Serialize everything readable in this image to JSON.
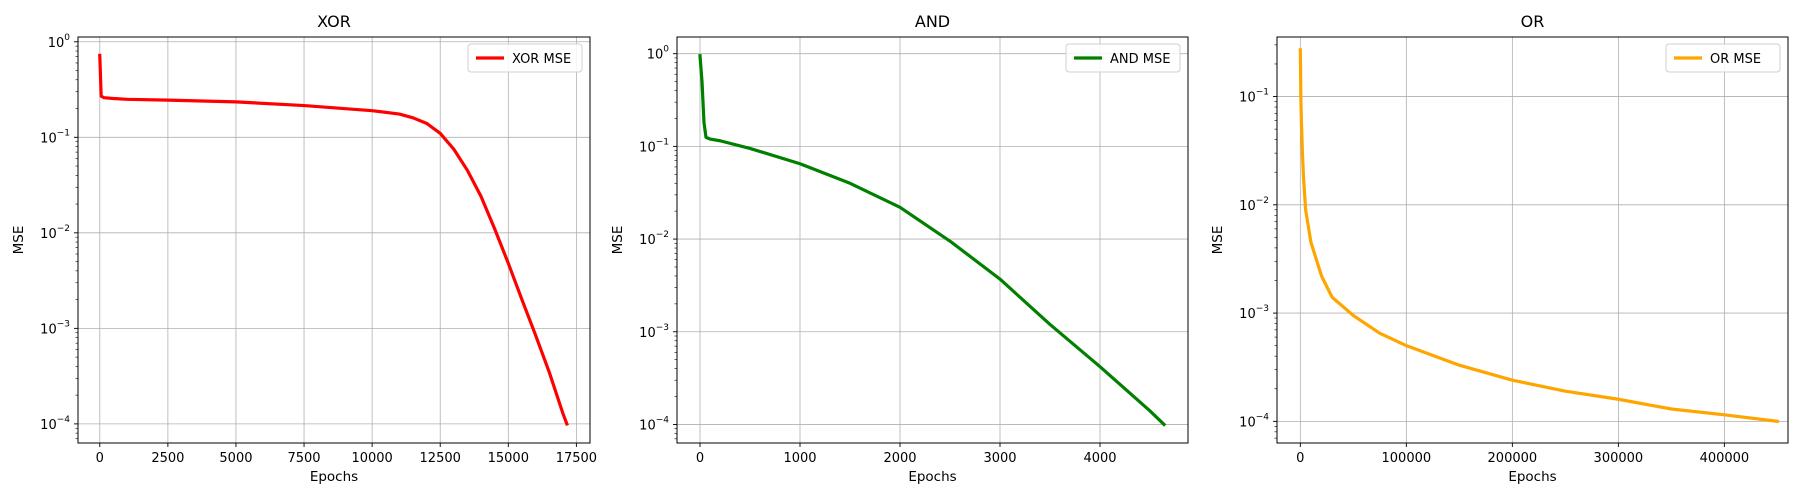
{
  "chart_data": [
    {
      "type": "line",
      "title": "XOR",
      "xlabel": "Epochs",
      "ylabel": "MSE",
      "yscale": "log",
      "xlim": [
        -800,
        18000
      ],
      "ylim_exp": [
        -4.2,
        0.05
      ],
      "xticks": [
        0,
        2500,
        5000,
        7500,
        10000,
        12500,
        15000,
        17500
      ],
      "xtick_labels": [
        "0",
        "2500",
        "5000",
        "7500",
        "10000",
        "12500",
        "15000",
        "17500"
      ],
      "yticks_exp": [
        -4,
        -3,
        -2,
        -1,
        0
      ],
      "grid": true,
      "legend_position": "top-right",
      "series": [
        {
          "name": "XOR MSE",
          "color": "#ff0000",
          "x": [
            0,
            50,
            150,
            500,
            1000,
            2500,
            5000,
            7500,
            10000,
            11000,
            11500,
            12000,
            12500,
            13000,
            13500,
            14000,
            14500,
            15000,
            15500,
            16000,
            16500,
            17000,
            17150
          ],
          "y": [
            0.72,
            0.27,
            0.26,
            0.255,
            0.25,
            0.245,
            0.235,
            0.215,
            0.19,
            0.175,
            0.16,
            0.14,
            0.11,
            0.075,
            0.045,
            0.024,
            0.011,
            0.0048,
            0.002,
            0.00085,
            0.00035,
            0.00013,
            0.0001
          ]
        }
      ]
    },
    {
      "type": "line",
      "title": "AND",
      "xlabel": "Epochs",
      "ylabel": "MSE",
      "yscale": "log",
      "xlim": [
        -230,
        4880
      ],
      "ylim_exp": [
        -4.2,
        0.18
      ],
      "xticks": [
        0,
        1000,
        2000,
        3000,
        4000
      ],
      "xtick_labels": [
        "0",
        "1000",
        "2000",
        "3000",
        "4000"
      ],
      "yticks_exp": [
        -4,
        -3,
        -2,
        -1,
        0
      ],
      "grid": true,
      "legend_position": "top-right",
      "series": [
        {
          "name": "AND MSE",
          "color": "#008000",
          "x": [
            0,
            20,
            40,
            60,
            100,
            200,
            500,
            1000,
            1500,
            2000,
            2500,
            3000,
            3500,
            4000,
            4500,
            4640
          ],
          "y": [
            0.95,
            0.5,
            0.18,
            0.125,
            0.12,
            0.115,
            0.095,
            0.065,
            0.04,
            0.022,
            0.0095,
            0.0037,
            0.0012,
            0.00042,
            0.00014,
            0.0001
          ]
        }
      ]
    },
    {
      "type": "line",
      "title": "OR",
      "xlabel": "Epochs",
      "ylabel": "MSE",
      "yscale": "log",
      "xlim": [
        -22000,
        460000
      ],
      "ylim_exp": [
        -4.2,
        -0.45
      ],
      "xticks": [
        0,
        100000,
        200000,
        300000,
        400000
      ],
      "xtick_labels": [
        "0",
        "100000",
        "200000",
        "300000",
        "400000"
      ],
      "yticks_exp": [
        -4,
        -3,
        -2,
        -1
      ],
      "grid": true,
      "legend_position": "top-right",
      "series": [
        {
          "name": "OR MSE",
          "color": "#ffa500",
          "x": [
            0,
            500,
            1000,
            2000,
            3000,
            5000,
            10000,
            20000,
            30000,
            50000,
            75000,
            100000,
            150000,
            200000,
            250000,
            300000,
            350000,
            400000,
            450000
          ],
          "y": [
            0.27,
            0.1,
            0.06,
            0.03,
            0.018,
            0.009,
            0.0045,
            0.0022,
            0.0014,
            0.00095,
            0.00065,
            0.0005,
            0.00033,
            0.00024,
            0.00019,
            0.00016,
            0.00013,
            0.000115,
            0.0001
          ]
        }
      ]
    }
  ]
}
